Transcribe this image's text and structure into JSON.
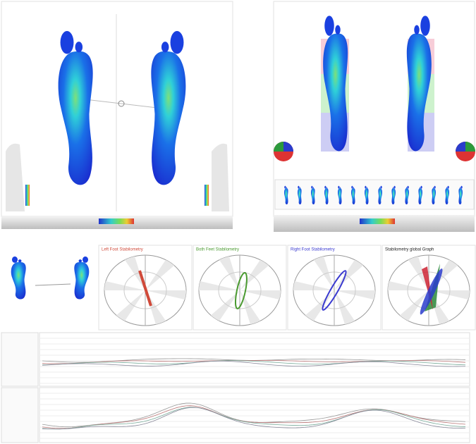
{
  "panels": [
    {
      "title": "Left Foot Stabilometry",
      "color": "#d04a3a"
    },
    {
      "title": "Both Feet Stabilometry",
      "color": "#4a9a30"
    },
    {
      "title": "Right Foot Stabilometry",
      "color": "#3a3ad0"
    },
    {
      "title": "Stabilometry global Graph",
      "color": "#222222"
    }
  ]
}
